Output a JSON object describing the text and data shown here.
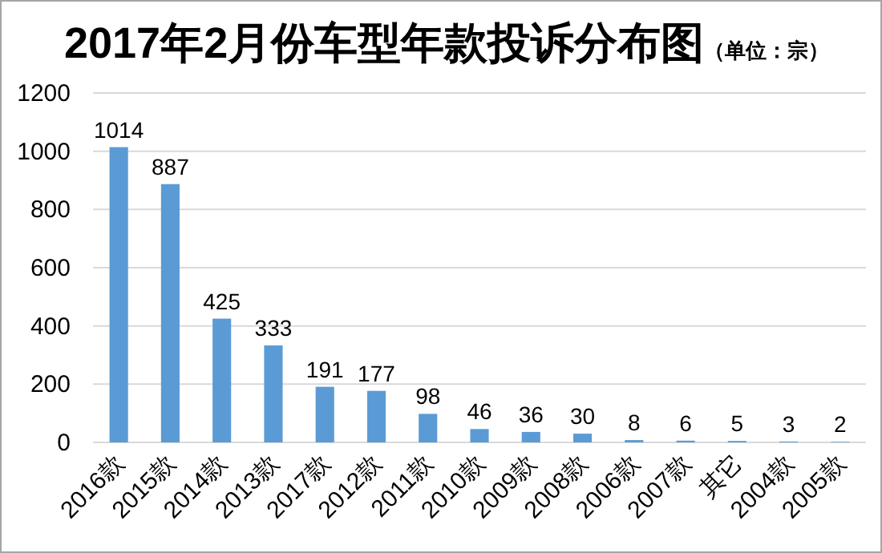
{
  "chart_data": {
    "type": "bar",
    "title": "2017年2月份车型年款投诉分布图",
    "subtitle": "（单位：宗）",
    "categories": [
      "2016款",
      "2015款",
      "2014款",
      "2013款",
      "2017款",
      "2012款",
      "2011款",
      "2010款",
      "2009款",
      "2008款",
      "2006款",
      "2007款",
      "其它",
      "2004款",
      "2005款"
    ],
    "values": [
      1014,
      887,
      425,
      333,
      191,
      177,
      98,
      46,
      36,
      30,
      8,
      6,
      5,
      3,
      2
    ],
    "color": "#5b9bd5",
    "ylim": [
      0,
      1200
    ],
    "yticks": [
      0,
      200,
      400,
      600,
      800,
      1000,
      1200
    ],
    "grid": "y",
    "data_labels": true
  }
}
